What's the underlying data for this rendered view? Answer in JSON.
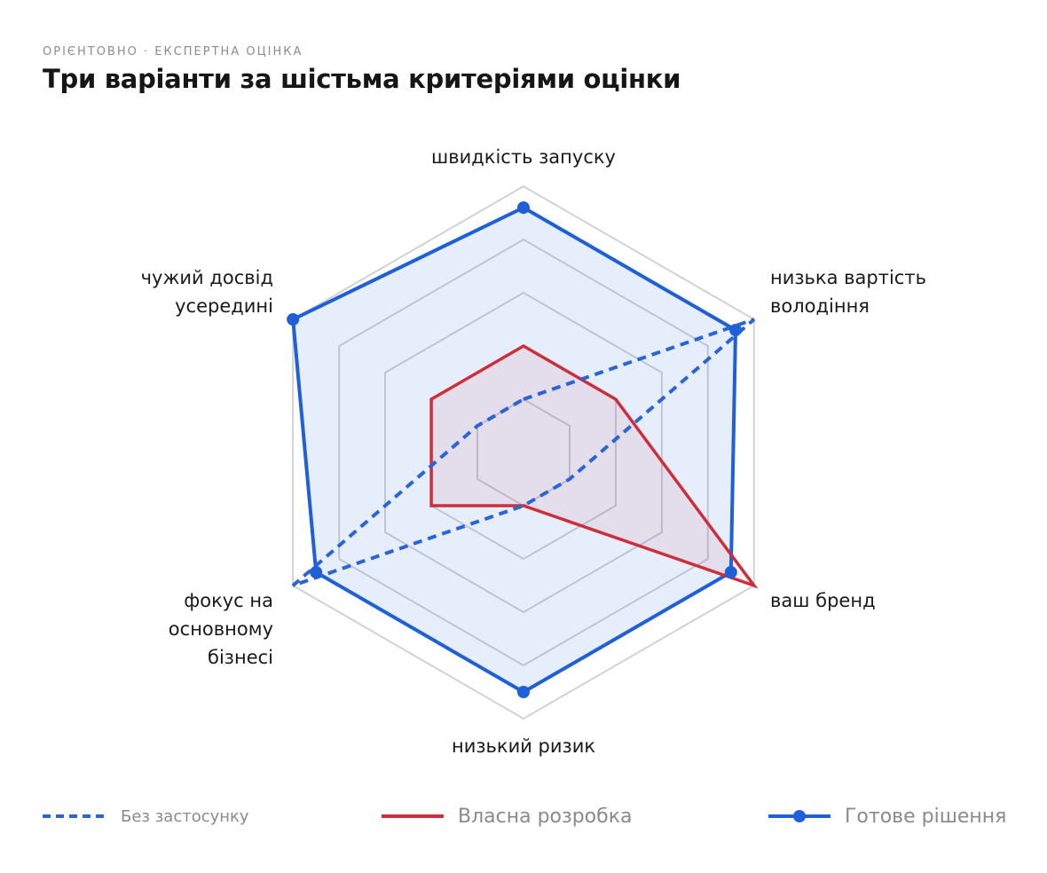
{
  "header": {
    "eyebrow": "ОРІЄНТОВНО · ЕКСПЕРТНА ОЦІНКА",
    "title": "Три варіанти за шістьма критеріями оцінки"
  },
  "chart_data": {
    "type": "radar",
    "title": "Три варіанти за шістьма критеріями оцінки",
    "axes": [
      {
        "label_lines": [
          "швидкість запуску"
        ]
      },
      {
        "label_lines": [
          "низька вартість",
          "володіння"
        ]
      },
      {
        "label_lines": [
          "ваш бренд"
        ]
      },
      {
        "label_lines": [
          "низький ризик"
        ]
      },
      {
        "label_lines": [
          "фокус на",
          "основному",
          "бізнесі"
        ]
      },
      {
        "label_lines": [
          "чужий досвід",
          "усередині"
        ]
      }
    ],
    "range": [
      0,
      5
    ],
    "rings": 5,
    "grid": true,
    "legend_position": "bottom",
    "series": [
      {
        "name": "Без застосунку",
        "values": [
          1,
          5,
          1,
          1,
          5,
          1
        ],
        "color": "#2a64d6",
        "style": "dashed",
        "markers": false,
        "fill": false
      },
      {
        "name": "Власна розробка",
        "values": [
          2,
          2,
          5,
          1,
          2,
          2
        ],
        "color": "#cc2f3a",
        "style": "solid",
        "markers": false,
        "fill": true,
        "fill_color": "#cc2f3a"
      },
      {
        "name": "Готове рішення",
        "values": [
          4.6,
          4.6,
          4.5,
          4.5,
          4.5,
          5
        ],
        "color": "#1f5fd8",
        "style": "solid",
        "markers": true,
        "fill": true,
        "fill_color": "#2f6fe0"
      }
    ]
  }
}
